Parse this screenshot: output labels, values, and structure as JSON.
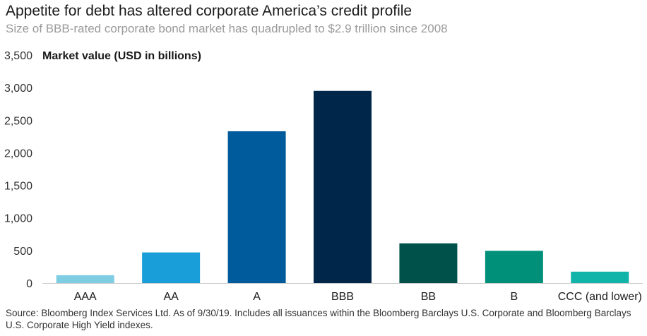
{
  "header": {
    "title": "Appetite for debt has altered corporate America’s credit profile",
    "subtitle": "Size of BBB-rated corporate bond market has quadrupled to $2.9 trillion since 2008"
  },
  "footnote": "Source: Bloomberg Index Services Ltd. As of 9/30/19. Includes all issuances within the Bloomberg Barclays U.S. Corporate and Bloomberg Barclays U.S. Corporate High Yield indexes.",
  "chart_data": {
    "type": "bar",
    "title": "",
    "ylabel": "Market value (USD in billions)",
    "xlabel": "",
    "categories": [
      "AAA",
      "AA",
      "A",
      "BBB",
      "BB",
      "B",
      "CCC (and lower)"
    ],
    "values": [
      120,
      470,
      2330,
      2950,
      610,
      495,
      175
    ],
    "ylim": [
      0,
      3500
    ],
    "yticks": [
      0,
      500,
      1000,
      1500,
      2000,
      2500,
      3000,
      3500
    ],
    "ytick_labels": [
      "0",
      "500",
      "1,000",
      "1,500",
      "2,000",
      "2,500",
      "3,000",
      "3,500"
    ],
    "grid": false,
    "legend": "none",
    "colors": [
      "#7fcde3",
      "#1a9ed9",
      "#005b9c",
      "#00264a",
      "#00514a",
      "#00907a",
      "#12b3a8"
    ]
  }
}
